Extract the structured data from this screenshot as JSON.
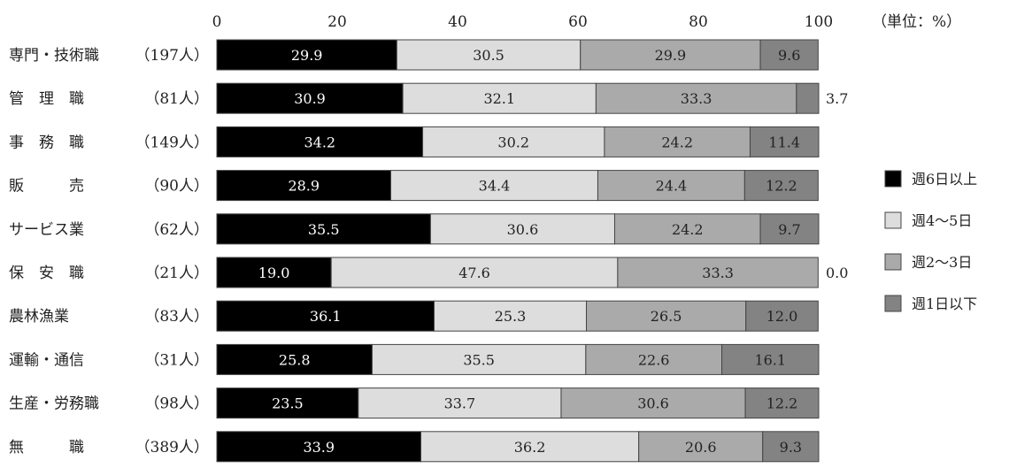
{
  "chart_data": {
    "type": "bar",
    "orientation": "horizontal",
    "stacked": true,
    "unit_label": "（単位：%）",
    "xlim": [
      0,
      100
    ],
    "x_ticks": [
      "0",
      "20",
      "40",
      "60",
      "80",
      "100"
    ],
    "grid": false,
    "legend_position": "right",
    "categories": [
      {
        "name": "専門・技術職",
        "count": "（197人）"
      },
      {
        "name": "管　理　職",
        "count": "（81人）"
      },
      {
        "name": "事　務　職",
        "count": "（149人）"
      },
      {
        "name": "販　　　売",
        "count": "（90人）"
      },
      {
        "name": "サービス業",
        "count": "（62人）"
      },
      {
        "name": "保　安　職",
        "count": "（21人）"
      },
      {
        "name": "農林漁業",
        "count": "（83人）"
      },
      {
        "name": "運輸・通信",
        "count": "（31人）"
      },
      {
        "name": "生産・労務職",
        "count": "（98人）"
      },
      {
        "name": "無　　　職",
        "count": "（389人）"
      }
    ],
    "series": [
      {
        "name": "週6日以上",
        "color": "#000000",
        "text_color": "#ffffff",
        "values": [
          29.9,
          30.9,
          34.2,
          28.9,
          35.5,
          19.0,
          36.1,
          25.8,
          23.5,
          33.9
        ],
        "labels": [
          "29.9",
          "30.9",
          "34.2",
          "28.9",
          "35.5",
          "19.0",
          "36.1",
          "25.8",
          "23.5",
          "33.9"
        ]
      },
      {
        "name": "週4〜5日",
        "color": "#dddddd",
        "text_color": "#222222",
        "values": [
          30.5,
          32.1,
          30.2,
          34.4,
          30.6,
          47.6,
          25.3,
          35.5,
          33.7,
          36.2
        ],
        "labels": [
          "30.5",
          "32.1",
          "30.2",
          "34.4",
          "30.6",
          "47.6",
          "25.3",
          "35.5",
          "33.7",
          "36.2"
        ]
      },
      {
        "name": "週2〜3日",
        "color": "#aaaaaa",
        "text_color": "#222222",
        "values": [
          29.9,
          33.3,
          24.2,
          24.4,
          24.2,
          33.3,
          26.5,
          22.6,
          30.6,
          20.6
        ],
        "labels": [
          "29.9",
          "33.3",
          "24.2",
          "24.4",
          "24.2",
          "33.3",
          "26.5",
          "22.6",
          "30.6",
          "20.6"
        ]
      },
      {
        "name": "週1日以下",
        "color": "#838383",
        "text_color": "#222222",
        "values": [
          9.6,
          3.7,
          11.4,
          12.2,
          9.7,
          0.0,
          12.0,
          16.1,
          12.2,
          9.3
        ],
        "labels": [
          "9.6",
          "3.7",
          "11.4",
          "12.2",
          "9.7",
          "0.0",
          "12.0",
          "16.1",
          "12.2",
          "9.3"
        ],
        "outside_label_rows": [
          1,
          5
        ]
      }
    ]
  }
}
